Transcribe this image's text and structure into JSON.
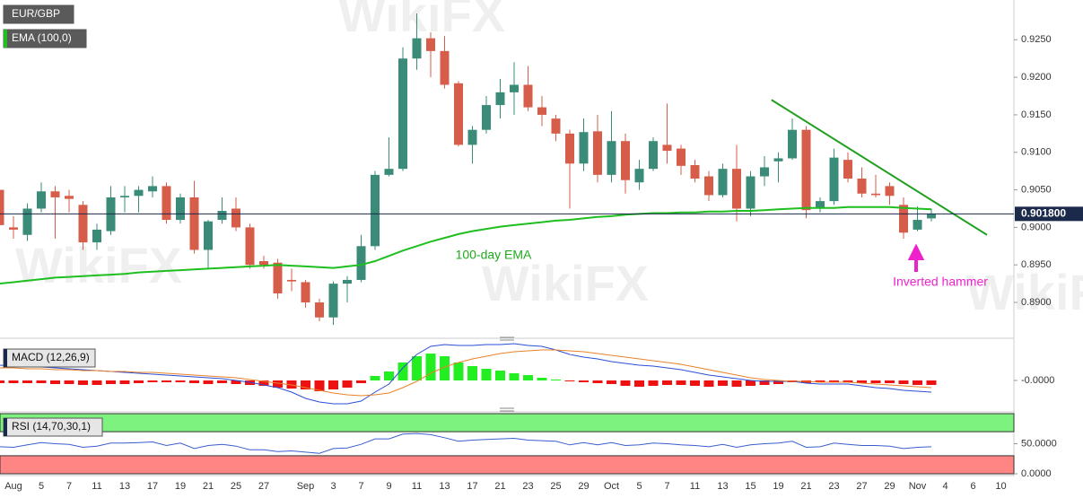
{
  "chart_data": [
    {
      "type": "candlestick",
      "title": "EUR/GBP",
      "watermark": "WikiFX",
      "categories": [
        null,
        "Aug",
        null,
        "5",
        null,
        "7",
        null,
        "11",
        null,
        "13",
        null,
        "17",
        null,
        "19",
        null,
        "21",
        null,
        "25",
        null,
        "27",
        null,
        null,
        "Sep",
        null,
        "3",
        null,
        "7",
        null,
        "9",
        null,
        "11",
        null,
        "13",
        null,
        "17",
        null,
        "21",
        null,
        "23",
        null,
        "25",
        null,
        "29",
        null,
        "Oct",
        null,
        "5",
        null,
        "7",
        null,
        "11",
        null,
        "13",
        null,
        "15",
        null,
        "19",
        null,
        "21",
        null,
        "23",
        null,
        "27",
        null,
        "29",
        null,
        "Nov",
        null,
        "4",
        null,
        "6",
        null,
        "10"
      ],
      "open": [
        0.905,
        0.9,
        0.899,
        0.9025,
        0.9048,
        0.9042,
        0.903,
        0.898,
        0.8995,
        0.904,
        0.9042,
        0.9048,
        0.9055,
        0.901,
        0.904,
        0.897,
        0.901,
        0.9025,
        0.9,
        0.8955,
        0.8953,
        0.893,
        0.8927,
        0.89,
        0.888,
        0.8925,
        0.893,
        0.8975,
        0.907,
        0.9078,
        0.9225,
        0.9252,
        0.9235,
        0.9192,
        0.911,
        0.913,
        0.9163,
        0.918,
        0.919,
        0.916,
        0.9145,
        0.9125,
        0.9085,
        0.9128,
        0.907,
        0.9115,
        0.906,
        0.9078,
        0.911,
        0.9105,
        0.9083,
        0.9068,
        0.9043,
        0.9078,
        0.9025,
        0.9068,
        0.9088,
        0.9092,
        0.913,
        0.9025,
        0.9035,
        0.909,
        0.9065,
        0.9045,
        0.9055,
        0.903,
        0.8997,
        0.9012,
        null,
        null,
        null,
        null,
        null
      ],
      "high": [
        0.9065,
        0.9015,
        0.9032,
        0.906,
        0.9055,
        0.905,
        0.9035,
        0.9005,
        0.9055,
        0.9055,
        0.9055,
        0.9068,
        0.906,
        0.9045,
        0.9062,
        0.901,
        0.904,
        0.904,
        0.9005,
        0.8962,
        0.8958,
        0.8945,
        0.893,
        0.8905,
        0.8928,
        0.8935,
        0.899,
        0.9075,
        0.912,
        0.924,
        0.9285,
        0.926,
        0.9255,
        0.9195,
        0.9135,
        0.9175,
        0.9198,
        0.922,
        0.9215,
        0.9175,
        0.915,
        0.913,
        0.9145,
        0.915,
        0.9155,
        0.9125,
        0.909,
        0.912,
        0.9165,
        0.911,
        0.909,
        0.9075,
        0.9085,
        0.911,
        0.9075,
        0.9095,
        0.91,
        0.9145,
        0.9135,
        0.904,
        0.9105,
        0.91,
        0.908,
        0.907,
        0.906,
        0.904,
        0.9028,
        0.9025,
        null,
        null,
        null,
        null,
        null
      ],
      "low": [
        0.8998,
        0.8985,
        0.8982,
        0.902,
        0.8985,
        0.902,
        0.897,
        0.897,
        0.899,
        0.902,
        0.902,
        0.904,
        0.9005,
        0.9005,
        0.8965,
        0.8945,
        0.9005,
        0.8995,
        0.8945,
        0.8945,
        0.8905,
        0.8915,
        0.8893,
        0.8875,
        0.887,
        0.89,
        0.8927,
        0.897,
        0.9068,
        0.9075,
        0.921,
        0.92,
        0.9185,
        0.9108,
        0.9085,
        0.9125,
        0.9145,
        0.915,
        0.9155,
        0.9135,
        0.9115,
        0.9025,
        0.9075,
        0.906,
        0.906,
        0.9045,
        0.905,
        0.9075,
        0.9085,
        0.907,
        0.906,
        0.9035,
        0.904,
        0.9008,
        0.9015,
        0.9055,
        0.906,
        0.909,
        0.9012,
        0.902,
        0.903,
        0.906,
        0.904,
        0.904,
        0.903,
        0.8985,
        0.8995,
        0.9008,
        null,
        null,
        null,
        null,
        null
      ],
      "close": [
        0.9003,
        0.8997,
        0.9025,
        0.9048,
        0.904,
        0.9038,
        0.898,
        0.8997,
        0.904,
        0.9042,
        0.905,
        0.9055,
        0.901,
        0.904,
        0.897,
        0.9008,
        0.9022,
        0.9,
        0.895,
        0.895,
        0.8912,
        0.8928,
        0.89,
        0.888,
        0.8925,
        0.893,
        0.8975,
        0.907,
        0.9078,
        0.9225,
        0.9252,
        0.9235,
        0.919,
        0.911,
        0.913,
        0.9163,
        0.918,
        0.919,
        0.916,
        0.915,
        0.9125,
        0.9085,
        0.9127,
        0.907,
        0.9115,
        0.9063,
        0.9078,
        0.9115,
        0.9102,
        0.9082,
        0.9065,
        0.9043,
        0.9078,
        0.9025,
        0.9068,
        0.908,
        0.9092,
        0.913,
        0.9023,
        0.9035,
        0.9093,
        0.9065,
        0.9045,
        0.9043,
        0.9042,
        0.8993,
        0.901,
        0.9018,
        null,
        null,
        null,
        null,
        null
      ],
      "up_color": "#3a8b77",
      "down_color": "#d65d49",
      "series": [
        {
          "name": "EMA (100,0)",
          "color": "#1fbf1f",
          "values": [
            0.8925,
            0.8927,
            0.8929,
            0.8931,
            0.8933,
            0.8934,
            0.8935,
            0.8936,
            0.8937,
            0.8938,
            0.894,
            0.8941,
            0.8942,
            0.8943,
            0.8944,
            0.8945,
            0.8946,
            0.8947,
            0.8948,
            0.8949,
            0.895,
            0.8949,
            0.8948,
            0.8947,
            0.8946,
            0.8948,
            0.895,
            0.8955,
            0.8962,
            0.8969,
            0.8975,
            0.8981,
            0.8986,
            0.8991,
            0.8995,
            0.8998,
            0.9001,
            0.9003,
            0.9005,
            0.9007,
            0.9009,
            0.901,
            0.9012,
            0.9014,
            0.9015,
            0.9017,
            0.9018,
            0.9019,
            0.9019,
            0.902,
            0.902,
            0.9021,
            0.9021,
            0.9022,
            0.9022,
            0.9023,
            0.9024,
            0.9025,
            0.9026,
            0.9026,
            0.9026,
            0.9027,
            0.9027,
            0.9027,
            0.9027,
            0.9026,
            0.9025,
            0.9024,
            null,
            null,
            null,
            null,
            null
          ]
        }
      ],
      "trendline": {
        "x": [
          55.5,
          71
        ],
        "y": [
          0.917,
          0.899
        ],
        "color": "#22a022"
      },
      "last_price": {
        "value": 0.9018,
        "label": "0.901800",
        "color": "#1b2a4a"
      },
      "annotations": [
        {
          "text": "100-day EMA",
          "color": "#1faa1f"
        },
        {
          "text": "Inverted hammer",
          "color": "#ee22cc"
        }
      ],
      "ylim": [
        0.8857,
        0.9303
      ],
      "yticks": [
        {
          "value": 0.89,
          "label": "0.8900"
        },
        {
          "value": 0.895,
          "label": "0.8950"
        },
        {
          "value": 0.9,
          "label": "0.9000"
        },
        {
          "value": 0.905,
          "label": "0.9050"
        },
        {
          "value": 0.91,
          "label": "0.9100"
        },
        {
          "value": 0.915,
          "label": "0.9150"
        },
        {
          "value": 0.92,
          "label": "0.9200"
        },
        {
          "value": 0.925,
          "label": "0.9250"
        }
      ],
      "grid": false
    },
    {
      "type": "macd",
      "title": "MACD (12,26,9)",
      "histogram": {
        "up_color": "#22ee22",
        "down_color": "#ee1111",
        "values": [
          -0.0003,
          -0.0003,
          -0.0003,
          -0.0003,
          -0.0004,
          -0.0004,
          -0.0005,
          -0.0005,
          -0.0004,
          -0.0004,
          -0.0003,
          -0.0002,
          -0.0002,
          -0.0002,
          -0.0003,
          -0.0004,
          -0.0003,
          -0.0004,
          -0.0005,
          -0.0006,
          -0.0008,
          -0.0009,
          -0.001,
          -0.0012,
          -0.001,
          -0.0008,
          -0.0003,
          0.0005,
          0.001,
          0.002,
          0.0027,
          0.003,
          0.0027,
          0.002,
          0.0016,
          0.0013,
          0.0011,
          0.0008,
          0.0006,
          0.0003,
          0.0001,
          -0.0001,
          -0.0002,
          -0.0003,
          -0.0004,
          -0.0006,
          -0.0007,
          -0.0006,
          -0.0005,
          -0.0005,
          -0.0006,
          -0.0007,
          -0.0006,
          -0.0007,
          -0.0006,
          -0.0005,
          -0.0004,
          -0.0002,
          -0.0003,
          -0.0002,
          -0.0002,
          -0.0002,
          -0.0003,
          -0.0003,
          -0.0003,
          -0.0004,
          -0.0005,
          -0.0005,
          null,
          null,
          null,
          null,
          null
        ]
      },
      "series": [
        {
          "color": "#2a4fd6",
          "values": [
            0.0017,
            0.0016,
            0.0016,
            0.0015,
            0.0014,
            0.0013,
            0.0012,
            0.0011,
            0.001,
            0.0009,
            0.0008,
            0.0007,
            0.0006,
            0.0005,
            0.0004,
            0.0003,
            0.0002,
            0.0,
            -0.0002,
            -0.0005,
            -0.0008,
            -0.0013,
            -0.002,
            -0.0024,
            -0.0026,
            -0.0026,
            -0.0023,
            -0.0013,
            -0.0004,
            0.0014,
            0.0029,
            0.0038,
            0.004,
            0.0039,
            0.0039,
            0.004,
            0.004,
            0.0041,
            0.0039,
            0.0038,
            0.0034,
            0.0029,
            0.0026,
            0.0024,
            0.0021,
            0.0019,
            0.0017,
            0.0016,
            0.0014,
            0.0012,
            0.0009,
            0.0006,
            0.0004,
            0.0002,
            0.0,
            -0.0001,
            -0.0001,
            -0.0001,
            -0.0003,
            -0.0004,
            -0.0004,
            -0.0004,
            -0.0006,
            -0.0008,
            -0.0009,
            -0.0011,
            -0.0012,
            -0.0013,
            null,
            null,
            null,
            null,
            null
          ]
        },
        {
          "color": "#e8822a",
          "values": [
            0.0014,
            0.0014,
            0.0013,
            0.0013,
            0.0012,
            0.0012,
            0.0011,
            0.0011,
            0.001,
            0.001,
            0.0009,
            0.0009,
            0.0008,
            0.0007,
            0.0006,
            0.0005,
            0.0004,
            0.0003,
            0.0001,
            -0.0001,
            -0.0003,
            -0.0005,
            -0.0008,
            -0.0011,
            -0.0014,
            -0.0016,
            -0.0017,
            -0.0016,
            -0.0014,
            -0.0008,
            -0.0001,
            0.0008,
            0.0015,
            0.002,
            0.0024,
            0.0027,
            0.003,
            0.0032,
            0.0033,
            0.0034,
            0.0034,
            0.0033,
            0.0032,
            0.003,
            0.0028,
            0.0026,
            0.0024,
            0.0022,
            0.002,
            0.0018,
            0.0015,
            0.0012,
            0.0009,
            0.0006,
            0.0003,
            0.0001,
            0.0,
            -0.0001,
            -0.0001,
            -0.0002,
            -0.0002,
            -0.0002,
            -0.0003,
            -0.0004,
            -0.0005,
            -0.0006,
            -0.0007,
            -0.0008,
            null,
            null,
            null,
            null,
            null
          ]
        }
      ],
      "ylim": [
        -0.0034,
        0.0042
      ],
      "yticks": [
        {
          "value": 0,
          "label": "-0.0000"
        }
      ]
    },
    {
      "type": "rsi",
      "title": "RSI (14,70,30,1)",
      "bands": [
        {
          "range": [
            70,
            100
          ],
          "color": "#7ef27e"
        },
        {
          "range": [
            0,
            30
          ],
          "color": "#ff8484"
        }
      ],
      "series": [
        {
          "color": "#3a5fcd",
          "values": [
            45,
            44,
            48,
            52,
            50,
            49,
            44,
            46,
            51,
            51,
            52,
            53,
            47,
            51,
            42,
            47,
            49,
            46,
            40,
            40,
            37,
            38,
            36,
            34,
            42,
            43,
            49,
            58,
            58,
            66,
            67,
            65,
            60,
            54,
            56,
            57,
            58,
            59,
            56,
            55,
            54,
            48,
            52,
            48,
            52,
            47,
            48,
            51,
            50,
            48,
            47,
            45,
            49,
            44,
            48,
            50,
            51,
            54,
            44,
            45,
            51,
            49,
            47,
            47,
            46,
            42,
            44,
            45,
            null,
            null,
            null,
            null,
            null
          ]
        }
      ],
      "ylim": [
        0,
        100
      ],
      "yticks": [
        {
          "value": 0,
          "label": "0.0000"
        },
        {
          "value": 50,
          "label": "50.0000"
        }
      ]
    }
  ]
}
